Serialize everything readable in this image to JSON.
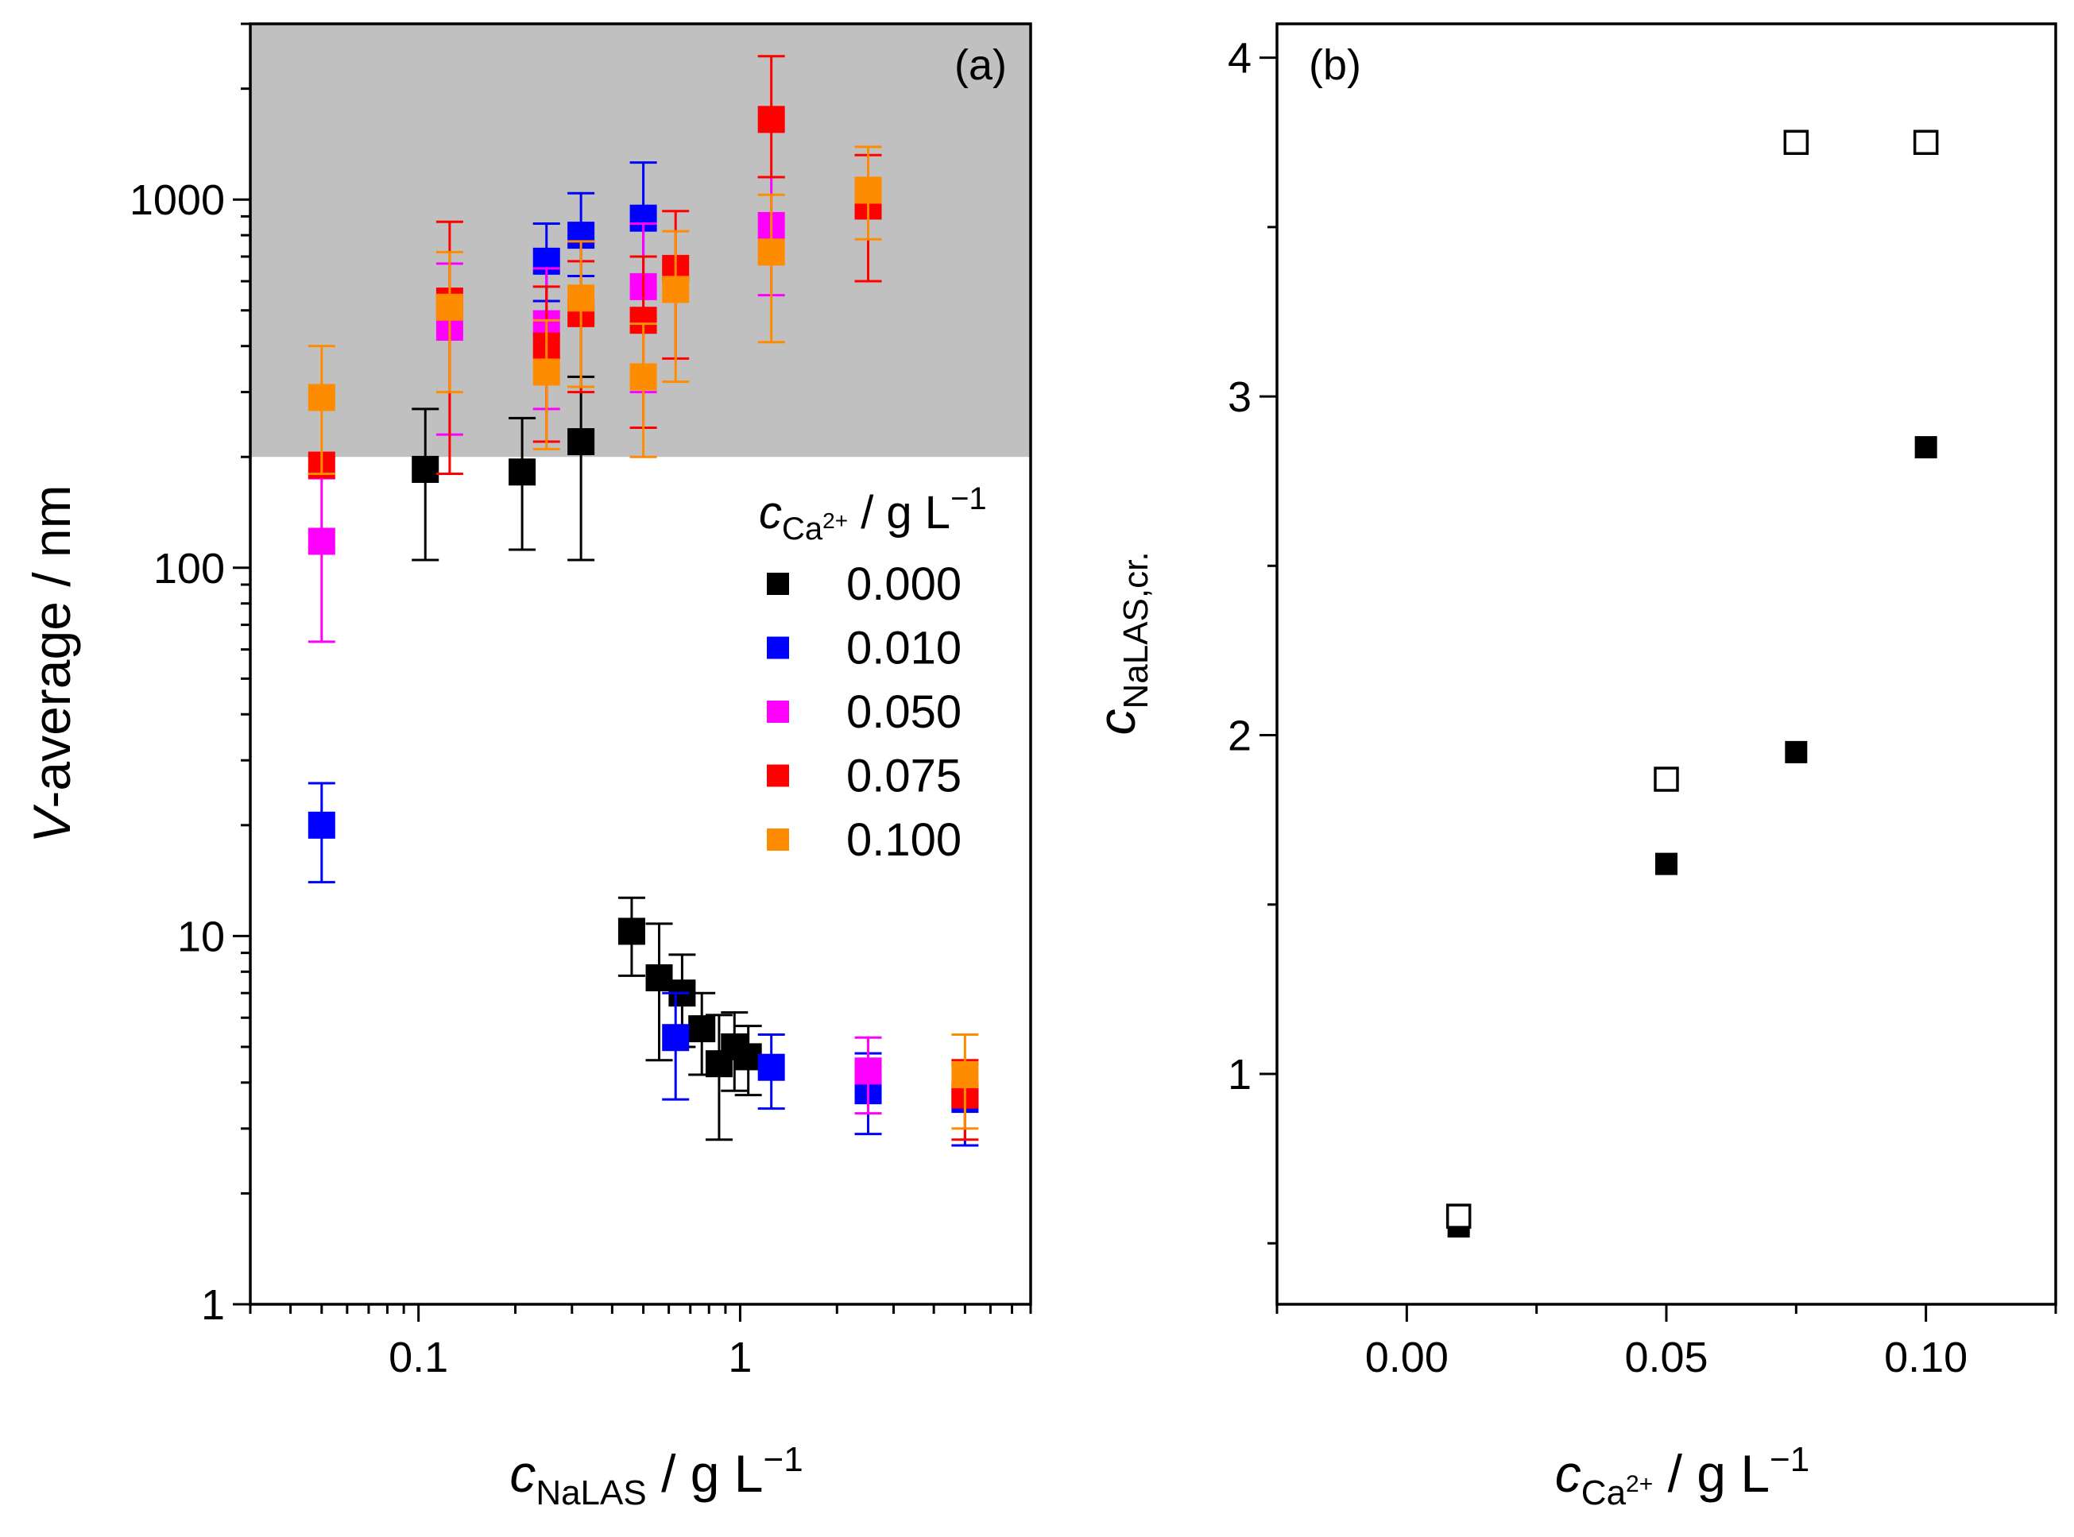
{
  "chart_data": [
    {
      "panel": "(a)",
      "type": "scatter",
      "x_scale": "log",
      "y_scale": "log",
      "xlim": [
        0.03,
        8
      ],
      "ylim": [
        1,
        3000
      ],
      "x_ticks": [
        {
          "value": 0.1,
          "label": "0.1"
        },
        {
          "value": 1,
          "label": "1"
        }
      ],
      "y_ticks": [
        {
          "value": 1,
          "label": "1"
        },
        {
          "value": 10,
          "label": "10"
        },
        {
          "value": 100,
          "label": "100"
        },
        {
          "value": 1000,
          "label": "1000"
        }
      ],
      "xlabel": {
        "var": "c",
        "sub": "NaLAS",
        "unit": " / g L",
        "sup": "−1"
      },
      "ylabel": {
        "var": "V",
        "rest": "-average / nm"
      },
      "shaded_region": {
        "y_min": 200,
        "y_max": 3000,
        "color": "#c0c0c0"
      },
      "legend": {
        "title": {
          "var": "c",
          "sub": "Ca",
          "subsup": "2+",
          "unit": " / g L",
          "sup": "−1"
        },
        "position": "right-middle"
      },
      "series": [
        {
          "name": "0.000",
          "color": "#000000",
          "points": [
            {
              "x": 0.105,
              "y": 185,
              "lo": 105,
              "hi": 270
            },
            {
              "x": 0.21,
              "y": 182,
              "lo": 112,
              "hi": 255
            },
            {
              "x": 0.32,
              "y": 220,
              "lo": 105,
              "hi": 330
            },
            {
              "x": 0.46,
              "y": 10.3,
              "lo": 7.8,
              "hi": 12.7
            },
            {
              "x": 0.56,
              "y": 7.7,
              "lo": 4.6,
              "hi": 10.8
            },
            {
              "x": 0.66,
              "y": 7.0,
              "lo": 5.0,
              "hi": 8.9
            },
            {
              "x": 0.76,
              "y": 5.6,
              "lo": 4.2,
              "hi": 7.0
            },
            {
              "x": 0.86,
              "y": 4.5,
              "lo": 2.8,
              "hi": 6.1
            },
            {
              "x": 0.96,
              "y": 5.0,
              "lo": 3.8,
              "hi": 6.2
            },
            {
              "x": 1.06,
              "y": 4.7,
              "lo": 3.7,
              "hi": 5.7
            }
          ]
        },
        {
          "name": "0.010",
          "color": "#0000ff",
          "points": [
            {
              "x": 0.05,
              "y": 20,
              "lo": 14,
              "hi": 26
            },
            {
              "x": 0.25,
              "y": 680,
              "lo": 530,
              "hi": 860
            },
            {
              "x": 0.32,
              "y": 800,
              "lo": 620,
              "hi": 1040
            },
            {
              "x": 0.5,
              "y": 890,
              "lo": 560,
              "hi": 1260
            },
            {
              "x": 0.63,
              "y": 5.3,
              "lo": 3.6,
              "hi": 7.0
            },
            {
              "x": 1.25,
              "y": 4.4,
              "lo": 3.4,
              "hi": 5.4
            },
            {
              "x": 2.5,
              "y": 3.8,
              "lo": 2.9,
              "hi": 4.8
            },
            {
              "x": 5.0,
              "y": 3.6,
              "lo": 2.7,
              "hi": 4.5
            }
          ]
        },
        {
          "name": "0.050",
          "color": "#ff00ff",
          "points": [
            {
              "x": 0.05,
              "y": 118,
              "lo": 63,
              "hi": 175
            },
            {
              "x": 0.125,
              "y": 450,
              "lo": 230,
              "hi": 670
            },
            {
              "x": 0.25,
              "y": 460,
              "lo": 270,
              "hi": 650
            },
            {
              "x": 0.5,
              "y": 580,
              "lo": 300,
              "hi": 860
            },
            {
              "x": 1.25,
              "y": 850,
              "lo": 550,
              "hi": 1150
            },
            {
              "x": 2.5,
              "y": 4.3,
              "lo": 3.3,
              "hi": 5.3
            }
          ]
        },
        {
          "name": "0.075",
          "color": "#ff0000",
          "points": [
            {
              "x": 0.05,
              "y": 190,
              "lo": 180,
              "hi": 200
            },
            {
              "x": 0.125,
              "y": 530,
              "lo": 180,
              "hi": 870
            },
            {
              "x": 0.25,
              "y": 400,
              "lo": 220,
              "hi": 580
            },
            {
              "x": 0.32,
              "y": 490,
              "lo": 300,
              "hi": 680
            },
            {
              "x": 0.5,
              "y": 470,
              "lo": 240,
              "hi": 700
            },
            {
              "x": 0.63,
              "y": 650,
              "lo": 370,
              "hi": 930
            },
            {
              "x": 1.25,
              "y": 1650,
              "lo": 1150,
              "hi": 2450
            },
            {
              "x": 2.5,
              "y": 960,
              "lo": 600,
              "hi": 1320
            },
            {
              "x": 5.0,
              "y": 3.7,
              "lo": 2.8,
              "hi": 4.6
            }
          ]
        },
        {
          "name": "0.100",
          "color": "#ff8c00",
          "points": [
            {
              "x": 0.05,
              "y": 290,
              "lo": 180,
              "hi": 400
            },
            {
              "x": 0.125,
              "y": 510,
              "lo": 300,
              "hi": 720
            },
            {
              "x": 0.25,
              "y": 340,
              "lo": 210,
              "hi": 470
            },
            {
              "x": 0.32,
              "y": 540,
              "lo": 310,
              "hi": 770
            },
            {
              "x": 0.5,
              "y": 330,
              "lo": 200,
              "hi": 460
            },
            {
              "x": 0.63,
              "y": 570,
              "lo": 320,
              "hi": 820
            },
            {
              "x": 1.25,
              "y": 720,
              "lo": 410,
              "hi": 1030
            },
            {
              "x": 2.5,
              "y": 1060,
              "lo": 780,
              "hi": 1390
            },
            {
              "x": 5.0,
              "y": 4.2,
              "lo": 3.0,
              "hi": 5.4
            }
          ]
        }
      ]
    },
    {
      "panel": "(b)",
      "type": "scatter",
      "xlim": [
        -0.025,
        0.125
      ],
      "ylim": [
        0.32,
        4.1
      ],
      "x_ticks": [
        {
          "value": 0.0,
          "label": "0.00"
        },
        {
          "value": 0.05,
          "label": "0.05"
        },
        {
          "value": 0.1,
          "label": "0.10"
        }
      ],
      "y_ticks": [
        {
          "value": 1,
          "label": "1"
        },
        {
          "value": 2,
          "label": "2"
        },
        {
          "value": 3,
          "label": "3"
        },
        {
          "value": 4,
          "label": "4"
        }
      ],
      "xlabel": {
        "var": "c",
        "sub": "Ca",
        "subsup": "2+",
        "unit": " / g L",
        "sup": "−1"
      },
      "ylabel": {
        "var": "c",
        "sub": "NaLAS,cr."
      },
      "series": [
        {
          "name": "filled",
          "marker": "filled-square",
          "color": "#000000",
          "points": [
            {
              "x": 0.01,
              "y": 0.55
            },
            {
              "x": 0.05,
              "y": 1.62
            },
            {
              "x": 0.075,
              "y": 1.95
            },
            {
              "x": 0.1,
              "y": 2.85
            }
          ]
        },
        {
          "name": "open",
          "marker": "open-square",
          "color": "#000000",
          "points": [
            {
              "x": 0.01,
              "y": 0.58
            },
            {
              "x": 0.05,
              "y": 1.87
            },
            {
              "x": 0.075,
              "y": 3.75
            },
            {
              "x": 0.1,
              "y": 3.75
            }
          ]
        }
      ]
    }
  ]
}
